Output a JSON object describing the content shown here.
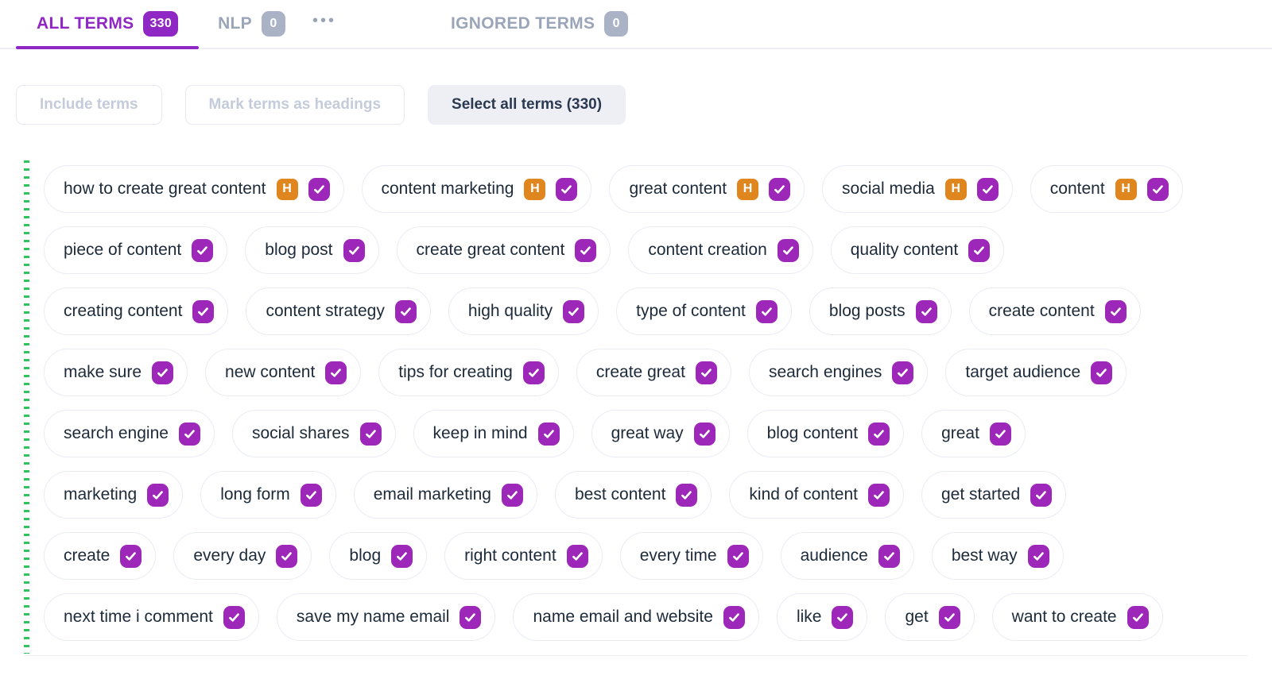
{
  "tabs": [
    {
      "label": "ALL TERMS",
      "count": "330",
      "active": true
    },
    {
      "label": "NLP",
      "count": "0",
      "active": false
    },
    {
      "label": "IGNORED TERMS",
      "count": "0",
      "active": false
    }
  ],
  "icons": {
    "more": "•••",
    "check": "check-icon"
  },
  "toolbar": {
    "include_terms_label": "Include terms",
    "mark_headings_label": "Mark terms as headings",
    "select_all_label": "Select all terms (330)"
  },
  "terms": {
    "heading_badge_label": "H",
    "all_checked": true,
    "rows": [
      [
        {
          "label": "how to create great content",
          "heading": true
        },
        {
          "label": "content marketing",
          "heading": true
        },
        {
          "label": "great content",
          "heading": true
        },
        {
          "label": "social media",
          "heading": true
        },
        {
          "label": "content",
          "heading": true
        }
      ],
      [
        {
          "label": "piece of content"
        },
        {
          "label": "blog post"
        },
        {
          "label": "create great content"
        },
        {
          "label": "content creation"
        },
        {
          "label": "quality content"
        }
      ],
      [
        {
          "label": "creating content"
        },
        {
          "label": "content strategy"
        },
        {
          "label": "high quality"
        },
        {
          "label": "type of content"
        },
        {
          "label": "blog posts"
        },
        {
          "label": "create content"
        }
      ],
      [
        {
          "label": "make sure"
        },
        {
          "label": "new content"
        },
        {
          "label": "tips for creating"
        },
        {
          "label": "create great"
        },
        {
          "label": "search engines"
        },
        {
          "label": "target audience"
        }
      ],
      [
        {
          "label": "search engine"
        },
        {
          "label": "social shares"
        },
        {
          "label": "keep in mind"
        },
        {
          "label": "great way"
        },
        {
          "label": "blog content"
        },
        {
          "label": "great"
        }
      ],
      [
        {
          "label": "marketing"
        },
        {
          "label": "long form"
        },
        {
          "label": "email marketing"
        },
        {
          "label": "best content"
        },
        {
          "label": "kind of content"
        },
        {
          "label": "get started"
        }
      ],
      [
        {
          "label": "create"
        },
        {
          "label": "every day"
        },
        {
          "label": "blog"
        },
        {
          "label": "right content"
        },
        {
          "label": "every time"
        },
        {
          "label": "audience"
        },
        {
          "label": "best way"
        }
      ],
      [
        {
          "label": "next time i comment"
        },
        {
          "label": "save my name email"
        },
        {
          "label": "name email and website"
        },
        {
          "label": "like"
        },
        {
          "label": "get"
        },
        {
          "label": "want to create"
        }
      ]
    ]
  },
  "colors": {
    "accent_purple": "#8f27c4",
    "checkbox_purple": "#9c27b8",
    "heading_orange": "#e0861f",
    "inactive_gray": "#9aa5b8",
    "badge_gray": "#a9b3c5",
    "selection_green": "#2ec45c"
  }
}
